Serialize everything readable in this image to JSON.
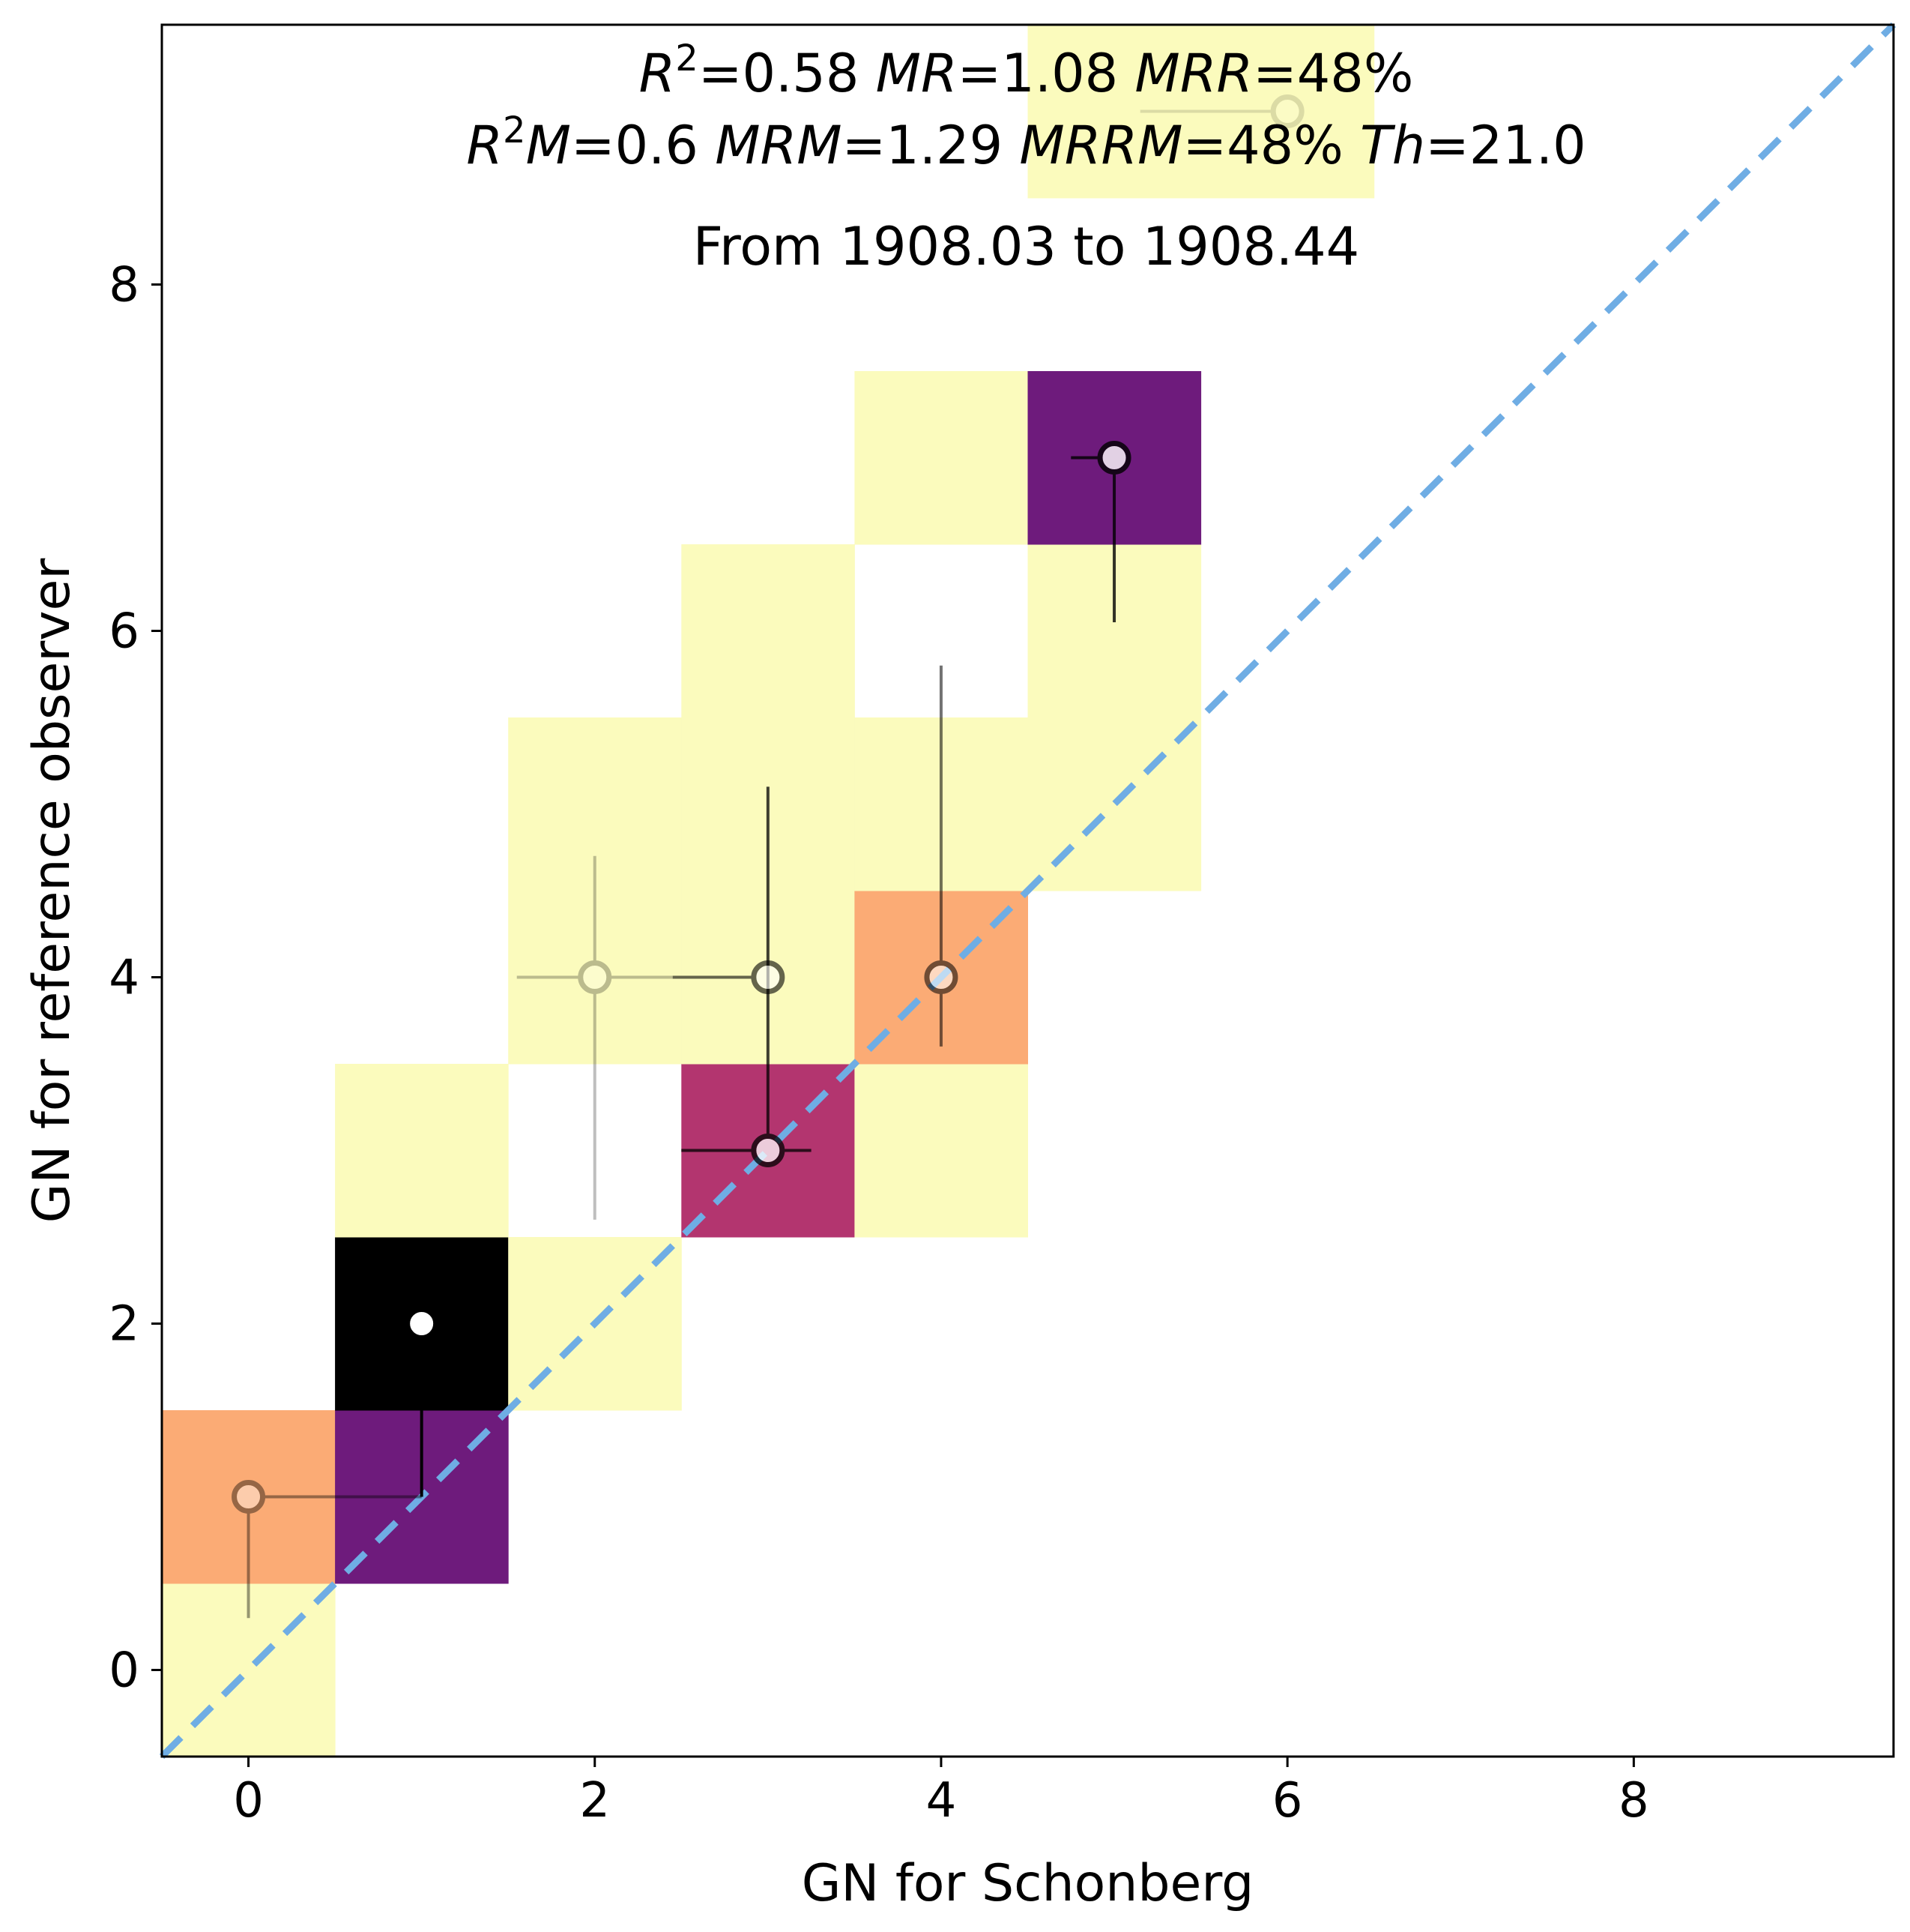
{
  "chart_data": {
    "type": "heatmap",
    "xlabel": "GN for Schonberg",
    "ylabel": "GN for reference observer",
    "xlim": [
      -0.5,
      9.5
    ],
    "ylim": [
      -0.5,
      9.5
    ],
    "x_ticks": [
      0,
      2,
      4,
      6,
      8
    ],
    "y_ticks": [
      0,
      2,
      4,
      6,
      8
    ],
    "grid": false,
    "annotations": {
      "line1": [
        {
          "t": "R",
          "i": true
        },
        {
          "t": "2",
          "sup": true
        },
        {
          "t": "=0.58 "
        },
        {
          "t": "MR",
          "i": true
        },
        {
          "t": "=1.08 "
        },
        {
          "t": "MRR",
          "i": true
        },
        {
          "t": "=48%"
        }
      ],
      "line2": [
        {
          "t": "R",
          "i": true
        },
        {
          "t": "2",
          "sup": true
        },
        {
          "t": "M",
          "i": true
        },
        {
          "t": "=0.6 "
        },
        {
          "t": "MRM",
          "i": true
        },
        {
          "t": "=1.29 "
        },
        {
          "t": "MRRM",
          "i": true
        },
        {
          "t": "=48% "
        },
        {
          "t": "Th",
          "i": true
        },
        {
          "t": "=21.0"
        }
      ],
      "period": "From 1908.03  to 1908.44"
    },
    "cell_colors": {
      "low": "#fbfbbd",
      "mid": "#fbab75",
      "high": "#b3356f",
      "higher": "#6e1b7c",
      "max": "#000000"
    },
    "cells": [
      {
        "x": 0,
        "y": 0,
        "level": "low"
      },
      {
        "x": 0,
        "y": 1,
        "level": "mid"
      },
      {
        "x": 1,
        "y": 1,
        "level": "higher"
      },
      {
        "x": 1,
        "y": 2,
        "level": "max"
      },
      {
        "x": 1,
        "y": 3,
        "level": "low"
      },
      {
        "x": 2,
        "y": 2,
        "level": "low"
      },
      {
        "x": 2,
        "y": 4,
        "level": "low"
      },
      {
        "x": 2,
        "y": 5,
        "level": "low"
      },
      {
        "x": 3,
        "y": 3,
        "level": "high"
      },
      {
        "x": 3,
        "y": 4,
        "level": "low"
      },
      {
        "x": 3,
        "y": 5,
        "level": "low"
      },
      {
        "x": 3,
        "y": 6,
        "level": "low"
      },
      {
        "x": 4,
        "y": 3,
        "level": "low"
      },
      {
        "x": 4,
        "y": 4,
        "level": "mid"
      },
      {
        "x": 4,
        "y": 5,
        "level": "low"
      },
      {
        "x": 4,
        "y": 7,
        "level": "low"
      },
      {
        "x": 5,
        "y": 5,
        "level": "low"
      },
      {
        "x": 5,
        "y": 6,
        "level": "low"
      },
      {
        "x": 5,
        "y": 7,
        "level": "higher"
      },
      {
        "x": 5,
        "y": 9,
        "level": "low"
      },
      {
        "x": 6,
        "y": 9,
        "level": "low"
      }
    ],
    "points": [
      {
        "x": 0,
        "y": 1,
        "xerr": [
          0,
          1
        ],
        "yerr": [
          0.7,
          0
        ],
        "alpha": 0.4
      },
      {
        "x": 1,
        "y": 2,
        "xerr": [
          0,
          0
        ],
        "yerr": [
          1,
          0
        ],
        "alpha": 1.0
      },
      {
        "x": 2,
        "y": 4,
        "xerr": [
          0.45,
          0.45
        ],
        "yerr": [
          1.4,
          0.7
        ],
        "alpha": 0.25
      },
      {
        "x": 3,
        "y": 3,
        "xerr": [
          0.5,
          0.25
        ],
        "yerr": [
          0,
          2.1
        ],
        "alpha": 0.75
      },
      {
        "x": 3,
        "y": 4,
        "xerr": [
          0.55,
          0
        ],
        "yerr": [
          0,
          0
        ],
        "alpha": 0.6
      },
      {
        "x": 4,
        "y": 4,
        "xerr": [
          0,
          0
        ],
        "yerr": [
          0.4,
          1.8
        ],
        "alpha": 0.55
      },
      {
        "x": 5,
        "y": 7,
        "xerr": [
          0.25,
          0
        ],
        "yerr": [
          0.95,
          0
        ],
        "alpha": 0.8
      },
      {
        "x": 6,
        "y": 9,
        "xerr": [
          0.85,
          0
        ],
        "yerr": [
          0,
          0
        ],
        "alpha": 0.12
      }
    ],
    "reference_line": {
      "from": [
        -0.5,
        -0.5
      ],
      "to": [
        9.5,
        9.5
      ],
      "color": "#6fade4",
      "style": "dashed"
    }
  }
}
